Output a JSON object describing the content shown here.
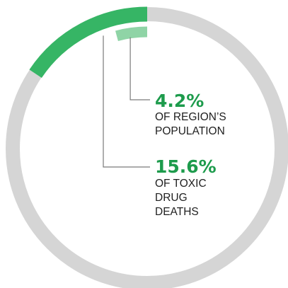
{
  "colors": {
    "track": "#d5d5d5",
    "outer": "#36b565",
    "inner": "#8fd4a6",
    "accent_text": "#1d9b4c",
    "leader": "#7a7a7a"
  },
  "chart_data": {
    "type": "donut",
    "title": "",
    "series": [
      {
        "value": 15.6,
        "value_label": "15.6%",
        "label_lines": [
          "OF TOXIC",
          "DRUG",
          "DEATHS"
        ]
      },
      {
        "value": 4.2,
        "value_label": "4.2%",
        "label_lines": [
          "OF REGION’S",
          "POPULATION"
        ]
      }
    ],
    "total": 100
  }
}
